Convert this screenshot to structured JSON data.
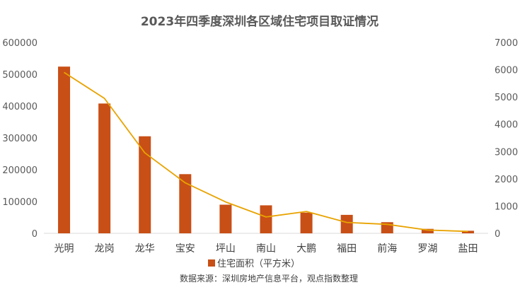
{
  "chart_data": {
    "type": "bar",
    "title": "2023年四季度深圳各区域住宅项目取证情况",
    "categories": [
      "光明",
      "龙岗",
      "龙华",
      "宝安",
      "坪山",
      "南山",
      "大鹏",
      "福田",
      "前海",
      "罗湖",
      "盐田"
    ],
    "series": [
      {
        "name": "住宅面积（平方米）",
        "type": "bar",
        "axis": "left",
        "color": "#C84F16",
        "values": [
          524000,
          408000,
          305000,
          186000,
          90000,
          88000,
          65000,
          58000,
          35000,
          14000,
          8000
        ]
      },
      {
        "name": "",
        "type": "line",
        "axis": "right",
        "color": "#E8A300",
        "values": [
          5900,
          4950,
          2950,
          1850,
          1150,
          600,
          800,
          400,
          330,
          120,
          70
        ]
      }
    ],
    "y_left": {
      "min": 0,
      "max": 600000,
      "ticks": [
        "0",
        "100000",
        "200000",
        "300000",
        "400000",
        "500000",
        "600000"
      ]
    },
    "y_right": {
      "min": 0,
      "max": 7000,
      "ticks": [
        "0",
        "1000",
        "2000",
        "3000",
        "4000",
        "5000",
        "6000",
        "7000"
      ]
    },
    "grid": false,
    "legend_position": "bottom"
  },
  "source_note": "数据来源：深圳房地产信息平台，观点指数整理"
}
